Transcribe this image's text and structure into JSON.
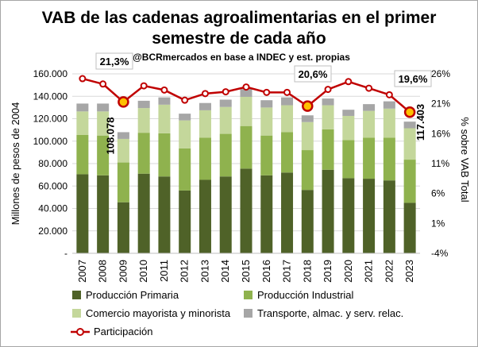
{
  "chart_data": {
    "type": "bar",
    "stacked": true,
    "title_line1": "VAB de las cadenas agroalimentarias en el primer",
    "title_line2": "semestre de cada año",
    "subtitle": "@BCRmercados en base a INDEC y est. propias",
    "ylabel": "Millones de pesos de 2004",
    "y2label": "% sobre VAB Total",
    "ylim": [
      0,
      160000
    ],
    "y2lim": [
      -4,
      26
    ],
    "yticks": [
      "-",
      "20.000",
      "40.000",
      "60.000",
      "80.000",
      "100.000",
      "120.000",
      "140.000",
      "160.000"
    ],
    "y2ticks": [
      "-4%",
      "1%",
      "6%",
      "11%",
      "16%",
      "21%",
      "26%"
    ],
    "grid": true,
    "legend_position": "bottom",
    "categories": [
      "2007",
      "2008",
      "2009",
      "2010",
      "2011",
      "2012",
      "2013",
      "2014",
      "2015",
      "2016",
      "2017",
      "2018",
      "2019",
      "2020",
      "2021",
      "2022",
      "2023"
    ],
    "series": [
      {
        "name": "Producción Primaria",
        "kind": "bar",
        "color": "#4f6228",
        "values": [
          70500,
          69500,
          45500,
          71000,
          68500,
          56000,
          65500,
          68500,
          75500,
          69500,
          72000,
          56500,
          74500,
          67000,
          66500,
          65000,
          45000
        ]
      },
      {
        "name": "Producción Industrial",
        "kind": "bar",
        "color": "#8fb24e",
        "values": [
          35000,
          35500,
          35500,
          36500,
          38500,
          37500,
          37500,
          38000,
          38000,
          35500,
          36000,
          35500,
          36000,
          34000,
          36500,
          38000,
          38500
        ]
      },
      {
        "name": "Comercio mayorista y minorista",
        "kind": "bar",
        "color": "#c4d79b",
        "values": [
          21000,
          21500,
          21000,
          22000,
          25500,
          25000,
          24500,
          24000,
          26000,
          25000,
          24000,
          25000,
          21500,
          21500,
          24000,
          26000,
          28000
        ]
      },
      {
        "name": "Transporte, almac. y serv. relac.",
        "kind": "bar",
        "color": "#a6a6a6",
        "values": [
          7000,
          7000,
          6000,
          6500,
          6500,
          6000,
          6500,
          6500,
          7000,
          6500,
          7000,
          6000,
          6000,
          5500,
          6000,
          6500,
          5900
        ]
      },
      {
        "name": "Participación",
        "kind": "line",
        "axis": "secondary",
        "color": "#c00000",
        "values": [
          25.2,
          24.3,
          21.3,
          24.0,
          23.3,
          21.6,
          22.7,
          23.0,
          23.8,
          22.9,
          22.9,
          20.6,
          23.4,
          24.7,
          23.6,
          22.5,
          19.6
        ]
      }
    ],
    "annotations": {
      "pct_2009": "21,3%",
      "pct_2018": "20,6%",
      "pct_2023": "19,6%",
      "total_2009": "108.078",
      "total_2023": "117.403"
    }
  }
}
